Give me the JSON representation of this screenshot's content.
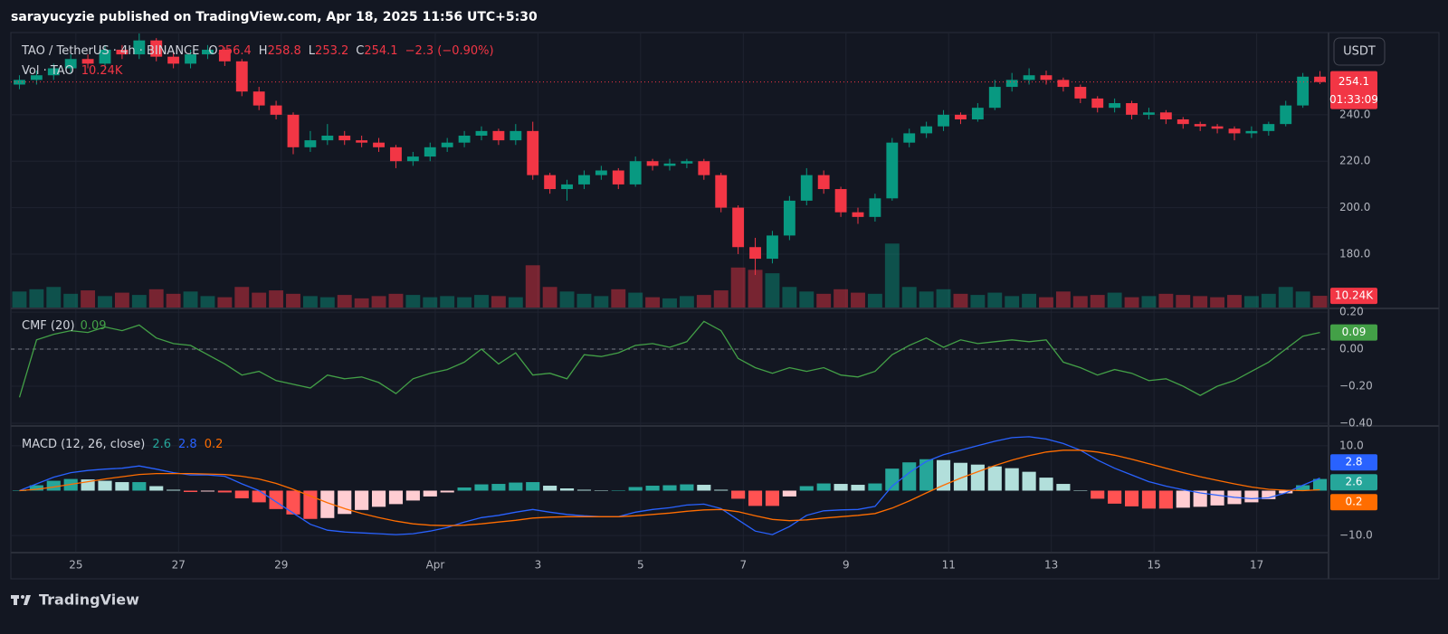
{
  "header": {
    "publisher": "sarayucyzie published on TradingView.com, Apr 18, 2025 11:56 UTC+5:30",
    "currency": "USDT"
  },
  "footer": {
    "brand": "TradingView"
  },
  "chart_data": [
    {
      "type": "candlestick",
      "title": "TAO / TetherUS · 4h · BINANCE",
      "ohlc_labels": [
        "O",
        "H",
        "L",
        "C"
      ],
      "change_label": "−2.3 (−0.90%)",
      "volume_title": "Vol · TAO",
      "volume_last_label": "10.24K",
      "countdown": "01:33:09",
      "up_color": "#089981",
      "down_color": "#f23645",
      "xlim": [
        -0.5,
        76.5
      ],
      "xticks": [
        {
          "value": 3.3,
          "label": "25"
        },
        {
          "value": 9.3,
          "label": "27"
        },
        {
          "value": 15.3,
          "label": "29"
        },
        {
          "value": 24.3,
          "label": "Apr"
        },
        {
          "value": 30.3,
          "label": "3"
        },
        {
          "value": 36.3,
          "label": "5"
        },
        {
          "value": 42.3,
          "label": "7"
        },
        {
          "value": 48.3,
          "label": "9"
        },
        {
          "value": 54.3,
          "label": "11"
        },
        {
          "value": 60.3,
          "label": "13"
        },
        {
          "value": 66.3,
          "label": "15"
        },
        {
          "value": 72.3,
          "label": "17"
        }
      ],
      "ylim": [
        157,
        275
      ],
      "yticks": [
        {
          "value": 180,
          "label": "180.0"
        },
        {
          "value": 200,
          "label": "200.0"
        },
        {
          "value": 220,
          "label": "220.0"
        },
        {
          "value": 240,
          "label": "240.0"
        }
      ],
      "grid": true,
      "volume_ylim": [
        0,
        240
      ],
      "open": [
        253,
        255,
        257,
        260,
        264,
        262,
        268,
        266,
        272,
        265,
        262,
        266,
        268,
        263,
        250,
        244,
        240,
        226,
        229,
        231,
        229,
        228,
        226,
        220,
        222,
        226,
        228,
        231,
        233,
        229,
        233,
        214,
        208,
        210,
        214,
        216,
        210,
        220,
        218,
        219,
        220,
        214,
        200,
        183,
        178,
        188,
        203,
        214,
        208,
        198,
        196,
        204,
        228,
        232,
        235,
        240,
        238,
        243,
        252,
        255,
        257,
        255,
        252,
        247,
        243,
        245,
        240,
        241,
        238,
        236,
        235,
        234,
        232,
        233,
        236,
        244,
        256.4
      ],
      "high": [
        257,
        259,
        262,
        266,
        266,
        270,
        270,
        275,
        273,
        267,
        268,
        270,
        269,
        264,
        252,
        246,
        241,
        233,
        236,
        233,
        231,
        230,
        227,
        224,
        228,
        230,
        233,
        235,
        234,
        236,
        237,
        215,
        212,
        216,
        218,
        217,
        222,
        221,
        221,
        221,
        221,
        215,
        201,
        187,
        190,
        205,
        217,
        216,
        209,
        200,
        206,
        230,
        234,
        237,
        242,
        241,
        245,
        255,
        258,
        260,
        259,
        256,
        253,
        248,
        247,
        246,
        243,
        242,
        239,
        237,
        236,
        235,
        235,
        237,
        246,
        258,
        258.8
      ],
      "low": [
        251,
        253,
        255,
        258,
        260,
        260,
        264,
        264,
        263,
        260,
        260,
        264,
        261,
        248,
        242,
        238,
        223,
        224,
        227,
        227,
        226,
        224,
        217,
        218,
        220,
        224,
        226,
        229,
        227,
        227,
        212,
        206,
        203,
        208,
        212,
        208,
        209,
        216,
        216,
        217,
        212,
        198,
        180,
        171,
        176,
        186,
        201,
        206,
        196,
        193,
        194,
        203,
        226,
        230,
        233,
        236,
        237,
        242,
        250,
        253,
        253,
        250,
        245,
        241,
        241,
        238,
        238,
        236,
        234,
        233,
        232,
        229,
        230,
        231,
        235,
        243,
        253.2
      ],
      "close": [
        255,
        257,
        260,
        264,
        262,
        268,
        266,
        272,
        265,
        262,
        266,
        268,
        263,
        250,
        244,
        240,
        226,
        229,
        231,
        229,
        228,
        226,
        220,
        222,
        226,
        228,
        231,
        233,
        229,
        233,
        214,
        208,
        210,
        214,
        216,
        210,
        220,
        218,
        219,
        220,
        214,
        200,
        183,
        178,
        188,
        203,
        214,
        208,
        198,
        196,
        204,
        228,
        232,
        235,
        240,
        238,
        243,
        252,
        255,
        257,
        255,
        252,
        247,
        243,
        245,
        240,
        241,
        238,
        236,
        235,
        234,
        232,
        233,
        236,
        244,
        256.4,
        254.1
      ],
      "volume": [
        14,
        16,
        18,
        12,
        15,
        10,
        13,
        11,
        16,
        12,
        14,
        10,
        9,
        18,
        13,
        15,
        12,
        10,
        9,
        11,
        8,
        10,
        12,
        11,
        9,
        10,
        9,
        11,
        10,
        9,
        37,
        18,
        14,
        12,
        10,
        16,
        13,
        9,
        8,
        10,
        11,
        15,
        35,
        33,
        30,
        18,
        14,
        12,
        16,
        13,
        12,
        56,
        18,
        14,
        16,
        12,
        11,
        13,
        10,
        12,
        9,
        14,
        10,
        11,
        13,
        9,
        10,
        12,
        11,
        10,
        9,
        11,
        10,
        12,
        18,
        14,
        10.24
      ]
    },
    {
      "type": "line",
      "title": "CMF (20)",
      "ylim": [
        -0.41,
        0.215
      ],
      "yticks": [
        {
          "value": 0.2,
          "label": "0.20"
        },
        {
          "value": 0,
          "label": "0.00"
        },
        {
          "value": -0.2,
          "label": "−0.20"
        },
        {
          "value": -0.4,
          "label": "−0.40"
        }
      ],
      "grid": true,
      "series": [
        {
          "color": "#43a047",
          "values": [
            -0.26,
            0.05,
            0.08,
            0.1,
            0.09,
            0.12,
            0.1,
            0.13,
            0.06,
            0.03,
            0.02,
            -0.03,
            -0.08,
            -0.14,
            -0.12,
            -0.17,
            -0.19,
            -0.21,
            -0.14,
            -0.16,
            -0.15,
            -0.18,
            -0.24,
            -0.16,
            -0.13,
            -0.11,
            -0.07,
            0.0,
            -0.08,
            -0.02,
            -0.14,
            -0.13,
            -0.16,
            -0.03,
            -0.04,
            -0.02,
            0.02,
            0.03,
            0.01,
            0.04,
            0.15,
            0.1,
            -0.05,
            -0.1,
            -0.13,
            -0.1,
            -0.12,
            -0.1,
            -0.14,
            -0.15,
            -0.12,
            -0.03,
            0.02,
            0.06,
            0.01,
            0.05,
            0.03,
            0.04,
            0.05,
            0.04,
            0.05,
            -0.07,
            -0.1,
            -0.14,
            -0.11,
            -0.13,
            -0.17,
            -0.16,
            -0.2,
            -0.25,
            -0.2,
            -0.17,
            -0.12,
            -0.07,
            0.0,
            0.07,
            0.09
          ]
        }
      ]
    },
    {
      "type": "macd",
      "title": "MACD (12, 26, close)",
      "ylim": [
        -13.6,
        14.2
      ],
      "yticks": [
        {
          "value": 10,
          "label": "10.0"
        },
        {
          "value": -10,
          "label": "−10.0"
        }
      ],
      "grid": true,
      "series": [
        {
          "style": "histogram",
          "color": "#26a69a",
          "color_fading": "#b2dfdb",
          "color_negative": "#ff5252",
          "color_negative_fading": "#ffcdd2",
          "values": [
            0.0,
            1.2,
            2.2,
            2.6,
            2.5,
            2.2,
            1.9,
            1.9,
            1.0,
            0.2,
            -0.3,
            -0.2,
            -0.4,
            -1.7,
            -2.6,
            -4.1,
            -5.3,
            -6.3,
            -6.1,
            -5.2,
            -4.3,
            -3.6,
            -3.0,
            -2.2,
            -1.3,
            -0.4,
            0.7,
            1.4,
            1.5,
            1.8,
            1.9,
            1.1,
            0.5,
            0.2,
            0.0,
            0.0,
            0.8,
            1.1,
            1.2,
            1.4,
            1.3,
            0.2,
            -1.8,
            -3.4,
            -3.4,
            -1.3,
            1.0,
            1.6,
            1.5,
            1.3,
            1.6,
            4.9,
            6.3,
            7.0,
            6.8,
            6.2,
            5.8,
            5.4,
            5.0,
            4.2,
            2.9,
            1.5,
            0.0,
            -1.8,
            -2.9,
            -3.5,
            -4.0,
            -4.0,
            -3.8,
            -3.6,
            -3.3,
            -3.0,
            -2.6,
            -1.9,
            -0.6,
            1.2,
            2.6
          ]
        },
        {
          "style": "line",
          "color": "#2962ff",
          "values": [
            0.0,
            1.5,
            3.0,
            4.0,
            4.5,
            4.8,
            5.0,
            5.5,
            4.8,
            4.0,
            3.5,
            3.5,
            3.2,
            1.5,
            0.0,
            -2.5,
            -5.0,
            -7.5,
            -8.8,
            -9.2,
            -9.4,
            -9.6,
            -9.8,
            -9.6,
            -9.0,
            -8.2,
            -7.0,
            -6.0,
            -5.5,
            -4.8,
            -4.2,
            -4.8,
            -5.3,
            -5.6,
            -5.8,
            -5.8,
            -4.8,
            -4.2,
            -3.8,
            -3.2,
            -3.0,
            -4.0,
            -6.5,
            -9.0,
            -9.8,
            -8.0,
            -5.5,
            -4.5,
            -4.3,
            -4.2,
            -3.5,
            1.0,
            4.0,
            6.5,
            8.0,
            9.0,
            10.0,
            11.0,
            11.8,
            12.0,
            11.5,
            10.5,
            9.0,
            6.8,
            5.0,
            3.5,
            2.0,
            1.0,
            0.2,
            -0.5,
            -1.0,
            -1.5,
            -1.8,
            -1.6,
            -0.5,
            1.2,
            2.8
          ]
        },
        {
          "style": "line",
          "color": "#ff6d00",
          "values": [
            0.0,
            0.3,
            0.8,
            1.4,
            2.0,
            2.6,
            3.1,
            3.6,
            3.8,
            3.8,
            3.8,
            3.7,
            3.6,
            3.2,
            2.6,
            1.6,
            0.3,
            -1.2,
            -2.7,
            -4.0,
            -5.1,
            -6.0,
            -6.8,
            -7.4,
            -7.7,
            -7.8,
            -7.7,
            -7.4,
            -7.0,
            -6.6,
            -6.1,
            -5.9,
            -5.8,
            -5.8,
            -5.8,
            -5.8,
            -5.6,
            -5.3,
            -5.0,
            -4.6,
            -4.3,
            -4.2,
            -4.7,
            -5.6,
            -6.4,
            -6.7,
            -6.5,
            -6.1,
            -5.8,
            -5.5,
            -5.1,
            -3.9,
            -2.3,
            -0.5,
            1.2,
            2.8,
            4.2,
            5.6,
            6.8,
            7.8,
            8.6,
            9.0,
            9.0,
            8.6,
            7.9,
            7.0,
            6.0,
            5.0,
            4.0,
            3.1,
            2.3,
            1.5,
            0.8,
            0.3,
            0.1,
            0.0,
            0.2
          ]
        }
      ]
    }
  ]
}
